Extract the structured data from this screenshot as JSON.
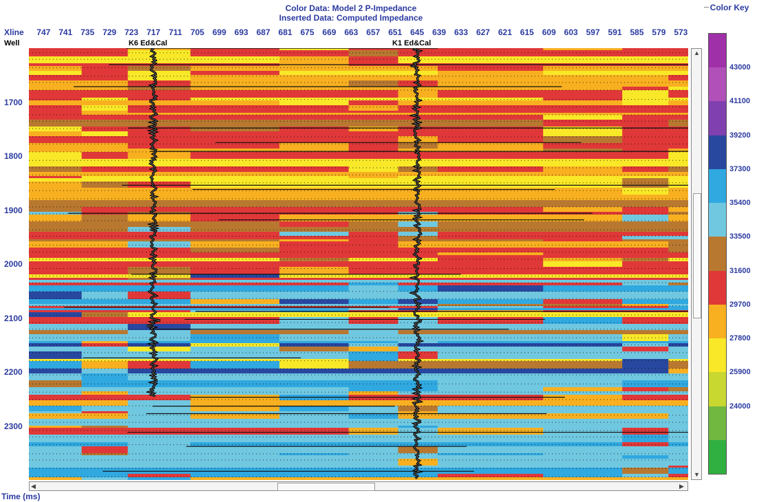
{
  "header": {
    "color_data": "Color Data:  Model 2 P-Impedance",
    "inserted_data": "Inserted Data:  Computed Impedance"
  },
  "axes": {
    "xline_label": "Xline",
    "well_label": "Well",
    "time_label": "Time (ms)",
    "xline_ticks": [
      "747",
      "741",
      "735",
      "729",
      "723",
      "717",
      "711",
      "705",
      "699",
      "693",
      "687",
      "681",
      "675",
      "669",
      "663",
      "657",
      "651",
      "645",
      "639",
      "633",
      "627",
      "621",
      "615",
      "609",
      "603",
      "597",
      "591",
      "585",
      "579",
      "573"
    ],
    "time_ticks": [
      "1700",
      "1800",
      "1900",
      "2000",
      "2100",
      "2200",
      "2300"
    ]
  },
  "wells": [
    {
      "name": "K6  Ed&Cal",
      "xline": 717,
      "start_ms": 1600,
      "end_ms": 2245
    },
    {
      "name": "K1  Ed&Cal",
      "xline": 645,
      "start_ms": 1600,
      "end_ms": 2398
    }
  ],
  "color_key": {
    "title": "Color Key",
    "labels": [
      "43000",
      "41100",
      "39200",
      "37300",
      "35400",
      "33500",
      "31600",
      "29700",
      "27800",
      "25900",
      "24000"
    ],
    "colors": [
      "#a030a8",
      "#b050b8",
      "#8040b0",
      "#2848a0",
      "#30a8e0",
      "#70c8e0",
      "#b87830",
      "#e03838",
      "#f8b020",
      "#f8e828",
      "#c8d830",
      "#70b840",
      "#30b040"
    ]
  },
  "section": {
    "time_range_ms": [
      1600,
      2400
    ],
    "xline_range": [
      751,
      571
    ],
    "facies_colors": {
      "red": "#e03838",
      "orange": "#f8b020",
      "yellow": "#f8e828",
      "brown": "#b87830",
      "cyan": "#70c8e0",
      "blue": "#30a8e0",
      "navy": "#2848a0"
    }
  }
}
